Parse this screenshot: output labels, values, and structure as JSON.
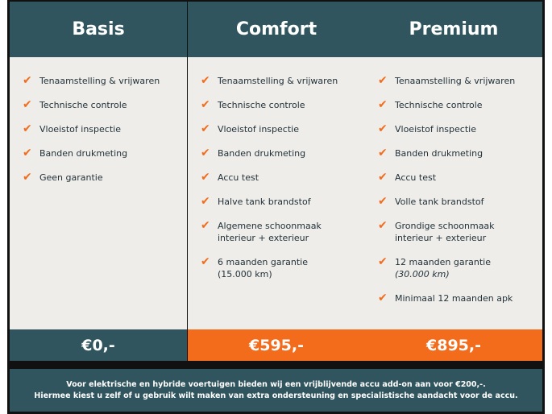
{
  "colors": {
    "teal": "#30555e",
    "orange": "#f26c1c",
    "body": "#eeede9"
  },
  "plans": [
    {
      "name": "Basis",
      "price": "€0,-",
      "price_color": "#30555e",
      "features": [
        [
          "Tenaamstelling & vrijwaren"
        ],
        [
          "Technische controle"
        ],
        [
          "Vloeistof inspectie"
        ],
        [
          "Banden drukmeting"
        ],
        [
          "Geen garantie"
        ]
      ]
    },
    {
      "name": "Comfort",
      "price": "€595,-",
      "price_color": "#f26c1c",
      "features": [
        [
          "Tenaamstelling & vrijwaren"
        ],
        [
          "Technische controle"
        ],
        [
          "Vloeistof inspectie"
        ],
        [
          "Banden drukmeting"
        ],
        [
          "Accu test"
        ],
        [
          "Halve tank brandstof"
        ],
        [
          "Algemene schoonmaak",
          "interieur + exterieur"
        ],
        [
          "6 maanden garantie",
          "(15.000 km)"
        ]
      ]
    },
    {
      "name": "Premium",
      "price": "€895,-",
      "price_color": "#f26c1c",
      "features": [
        [
          "Tenaamstelling & vrijwaren"
        ],
        [
          "Technische controle"
        ],
        [
          "Vloeistof inspectie"
        ],
        [
          "Banden drukmeting"
        ],
        [
          "Accu test"
        ],
        [
          "Volle tank brandstof"
        ],
        [
          "Grondige schoonmaak",
          "interieur + exterieur"
        ],
        [
          "12 maanden garantie",
          "(30.000 km)"
        ],
        [
          "Minimaal 12 maanden apk"
        ]
      ]
    }
  ],
  "footer": {
    "line1": "Voor elektrische en hybride voertuigen bieden wij een vrijblijvende accu add-on aan voor €200,-.",
    "line2": "Hiermee kiest u zelf of u gebruik wilt maken van extra ondersteuning en specialistische aandacht voor de accu."
  }
}
